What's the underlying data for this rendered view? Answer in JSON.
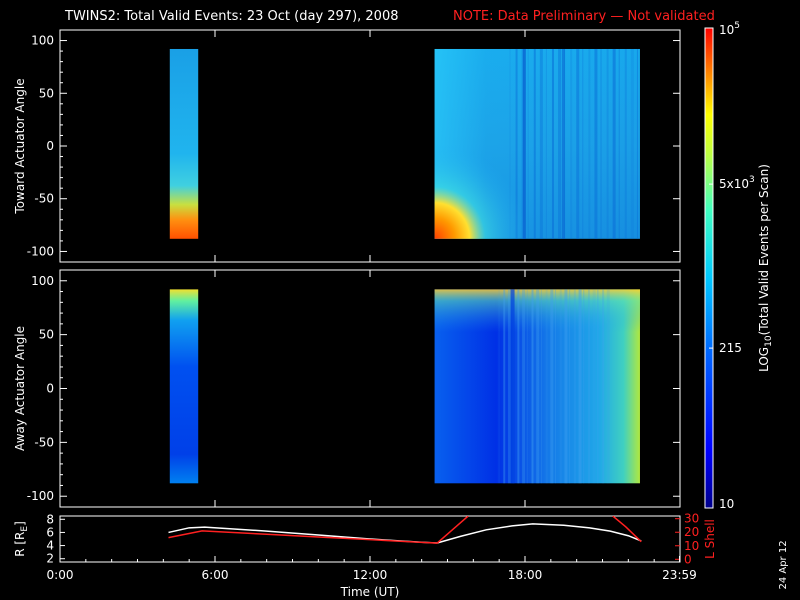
{
  "title": {
    "main": "TWINS2: Total Valid Events: 23 Oct (day 297), 2008",
    "note": "NOTE: Data Preliminary — Not validated"
  },
  "chart_data": [
    {
      "type": "heatmap",
      "name": "toward",
      "ylabel": "Toward Actuator Angle",
      "ylim": [
        -110,
        110
      ],
      "yticks": [
        "100",
        "50",
        "0",
        "-50",
        "-100"
      ],
      "yticks_values": [
        100,
        50,
        0,
        -50,
        -100
      ],
      "xlim": [
        0,
        24
      ],
      "blocks": [
        {
          "t_start": 4.25,
          "t_end": 5.35,
          "angle_min": -88,
          "angle_max": 92
        },
        {
          "t_start": 14.5,
          "t_end": 22.45,
          "angle_min": -88,
          "angle_max": 92
        }
      ]
    },
    {
      "type": "heatmap",
      "name": "away",
      "ylabel": "Away Actuator Angle",
      "ylim": [
        -110,
        110
      ],
      "yticks": [
        "100",
        "50",
        "0",
        "-50",
        "-100"
      ],
      "yticks_values": [
        100,
        50,
        0,
        -50,
        -100
      ],
      "xlim": [
        0,
        24
      ],
      "blocks": [
        {
          "t_start": 4.25,
          "t_end": 5.35,
          "angle_min": -88,
          "angle_max": 92
        },
        {
          "t_start": 14.5,
          "t_end": 22.45,
          "angle_min": -88,
          "angle_max": 92
        }
      ]
    },
    {
      "type": "line",
      "name": "ephemeris",
      "ylabel_left": "R [R",
      "ylabel_left_sub": "E",
      "ylabel_left_end": "]",
      "ylabel_right": "L Shell",
      "yticks_left": [
        "8",
        "6",
        "4",
        "2"
      ],
      "yticks_left_values": [
        8,
        6,
        4,
        2
      ],
      "yticks_right": [
        "30",
        "20",
        "10",
        "0"
      ],
      "yticks_right_values": [
        30,
        20,
        10,
        0
      ],
      "ylim_left": [
        1.5,
        8.5
      ],
      "ylim_right": [
        -2,
        32
      ],
      "xlabel": "Time (UT)",
      "xticks": [
        "0:00",
        "6:00",
        "12:00",
        "18:00",
        "23:59"
      ],
      "xticks_values": [
        0,
        6,
        12,
        18,
        23.98
      ],
      "series": [
        {
          "color": "#ffffff",
          "x": [
            4.2,
            5.0,
            5.6,
            8.0,
            10.0,
            12.0,
            14.0,
            14.6,
            15.5,
            16.5,
            17.5,
            18.3,
            19.5,
            20.5,
            21.3,
            22.0,
            22.5
          ],
          "y": [
            6.0,
            6.7,
            6.8,
            6.2,
            5.6,
            5.0,
            4.5,
            4.4,
            5.4,
            6.4,
            7.0,
            7.3,
            7.1,
            6.7,
            6.2,
            5.5,
            4.7
          ]
        },
        {
          "color": "#ff2020",
          "x": [
            4.2,
            5.5,
            8.0,
            10.0,
            12.0,
            14.0,
            14.6,
            15.2,
            15.8
          ],
          "y": [
            16,
            21,
            18.5,
            16.5,
            14.5,
            12.5,
            12,
            22,
            32
          ]
        },
        {
          "color": "#ff2020",
          "x": [
            21.4,
            21.9,
            22.5
          ],
          "y": [
            32,
            24,
            13
          ]
        }
      ]
    }
  ],
  "colorbar": {
    "label": "LOG10(Total Valid Events per Scan)",
    "label_main": "LOG",
    "label_sub": "10",
    "label_rest": "(Total Valid Events per Scan)",
    "ticks": [
      {
        "base": "10",
        "exp": "5",
        "value": 100000
      },
      {
        "base": "5x10",
        "exp": "3",
        "value": 5000
      },
      {
        "base": "215",
        "exp": "",
        "value": 215
      },
      {
        "base": "10",
        "exp": "",
        "value": 10
      }
    ],
    "range": [
      10,
      100000
    ]
  },
  "datestamp": "24 Apr 12"
}
